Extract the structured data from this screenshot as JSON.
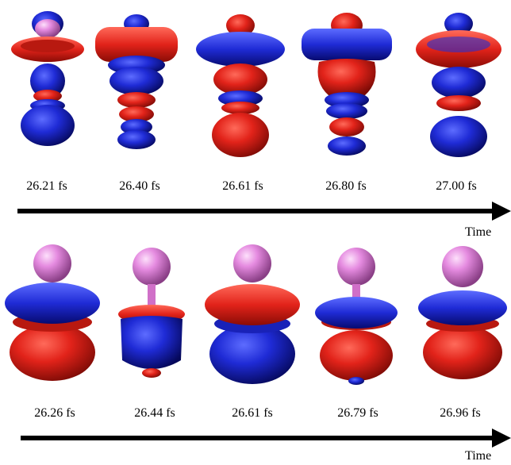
{
  "rows": [
    {
      "frames": [
        {
          "label": "26.21 fs"
        },
        {
          "label": "26.40 fs"
        },
        {
          "label": "26.61 fs"
        },
        {
          "label": "26.80 fs"
        },
        {
          "label": "27.00 fs"
        }
      ],
      "axis_label": "Time"
    },
    {
      "frames": [
        {
          "label": "26.26 fs"
        },
        {
          "label": "26.44 fs"
        },
        {
          "label": "26.61 fs"
        },
        {
          "label": "26.79 fs"
        },
        {
          "label": "26.96 fs"
        }
      ],
      "axis_label": "Time"
    }
  ],
  "colors": {
    "positive_lobe": "#e2231a",
    "negative_lobe": "#1f2bd6",
    "atom": "#e58be0"
  }
}
